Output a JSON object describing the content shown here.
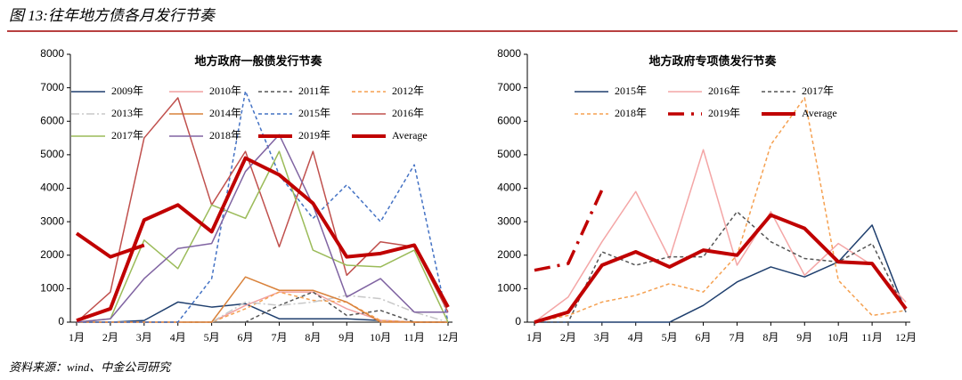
{
  "title": "图 13:往年地方债各月发行节奏",
  "source": "资料来源：wind、中金公司研究",
  "chart_data": [
    {
      "type": "line",
      "title": "地方政府一般债发行节奏",
      "categories": [
        "1月",
        "2月",
        "3月",
        "4月",
        "5月",
        "6月",
        "7月",
        "8月",
        "9月",
        "10月",
        "11月",
        "12月"
      ],
      "ylim": [
        0,
        8000
      ],
      "yticks": [
        0,
        1000,
        2000,
        3000,
        4000,
        5000,
        6000,
        7000,
        8000
      ],
      "series": [
        {
          "name": "2009年",
          "color": "#1f3f6e",
          "style": "solid",
          "values": [
            0,
            0,
            50,
            600,
            450,
            550,
            100,
            100,
            100,
            50,
            0,
            0
          ]
        },
        {
          "name": "2010年",
          "color": "#f0a0a0",
          "style": "solid",
          "values": [
            0,
            0,
            0,
            0,
            0,
            500,
            900,
            900,
            400,
            50,
            0,
            0
          ]
        },
        {
          "name": "2011年",
          "color": "#555555",
          "style": "dashed",
          "values": [
            0,
            0,
            0,
            0,
            0,
            0,
            500,
            900,
            200,
            350,
            0,
            0
          ]
        },
        {
          "name": "2012年",
          "color": "#f5a050",
          "style": "dashed",
          "values": [
            0,
            0,
            0,
            0,
            0,
            400,
            900,
            650,
            600,
            50,
            0,
            0
          ]
        },
        {
          "name": "2013年",
          "color": "#c8c8c8",
          "style": "dashdot",
          "values": [
            0,
            0,
            0,
            0,
            0,
            600,
            500,
            600,
            800,
            700,
            300,
            0
          ]
        },
        {
          "name": "2014年",
          "color": "#d9823b",
          "style": "solid",
          "values": [
            0,
            0,
            0,
            0,
            0,
            1350,
            950,
            950,
            600,
            0,
            0,
            0
          ]
        },
        {
          "name": "2015年",
          "color": "#4472c4",
          "style": "dashed",
          "values": [
            0,
            0,
            0,
            0,
            1300,
            6900,
            4400,
            3100,
            4100,
            3000,
            4700,
            0
          ]
        },
        {
          "name": "2016年",
          "color": "#c0504d",
          "style": "solid",
          "values": [
            0,
            900,
            5500,
            6700,
            3500,
            5100,
            2250,
            5100,
            1400,
            2400,
            2250,
            300
          ]
        },
        {
          "name": "2017年",
          "color": "#9bbb59",
          "style": "solid",
          "values": [
            0,
            100,
            2450,
            1600,
            3500,
            3100,
            5100,
            2150,
            1700,
            1650,
            2150,
            0
          ]
        },
        {
          "name": "2018年",
          "color": "#8064a2",
          "style": "solid",
          "values": [
            0,
            100,
            1300,
            2200,
            2350,
            4500,
            5600,
            3500,
            750,
            1300,
            300,
            300
          ]
        },
        {
          "name": "2019年",
          "color": "#c00000",
          "style": "thick",
          "values": [
            2650,
            1950,
            2300,
            null,
            null,
            null,
            null,
            null,
            null,
            null,
            null,
            null
          ]
        },
        {
          "name": "Average",
          "color": "#c00000",
          "style": "thick",
          "values": [
            50,
            400,
            3050,
            3500,
            2700,
            4900,
            4400,
            3550,
            1950,
            2050,
            2300,
            450
          ]
        }
      ]
    },
    {
      "type": "line",
      "title": "地方政府专项债发行节奏",
      "categories": [
        "1月",
        "2月",
        "3月",
        "4月",
        "5月",
        "6月",
        "7月",
        "8月",
        "9月",
        "10月",
        "11月",
        "12月"
      ],
      "ylim": [
        0,
        8000
      ],
      "yticks": [
        0,
        1000,
        2000,
        3000,
        4000,
        5000,
        6000,
        7000,
        8000
      ],
      "series": [
        {
          "name": "2015年",
          "color": "#1f3f6e",
          "style": "solid",
          "values": [
            0,
            0,
            0,
            0,
            0,
            500,
            1200,
            1650,
            1350,
            1800,
            2900,
            300
          ]
        },
        {
          "name": "2016年",
          "color": "#f4a6a6",
          "style": "solid",
          "values": [
            0,
            750,
            2400,
            3900,
            1900,
            5150,
            1700,
            3300,
            1400,
            2350,
            1700,
            600
          ]
        },
        {
          "name": "2017年",
          "color": "#555555",
          "style": "dashed",
          "values": [
            0,
            0,
            2100,
            1700,
            1950,
            1950,
            3300,
            2400,
            1900,
            1800,
            2350,
            300
          ]
        },
        {
          "name": "2018年",
          "color": "#f5a050",
          "style": "dashed",
          "values": [
            0,
            200,
            600,
            800,
            1150,
            900,
            2000,
            5300,
            6700,
            1250,
            200,
            350
          ]
        },
        {
          "name": "2019年",
          "color": "#c00000",
          "style": "thick-dashdot",
          "values": [
            1550,
            1750,
            3950,
            null,
            null,
            null,
            null,
            null,
            null,
            null,
            null,
            null
          ]
        },
        {
          "name": "Average",
          "color": "#c00000",
          "style": "thick",
          "values": [
            0,
            300,
            1700,
            2100,
            1650,
            2150,
            2000,
            3200,
            2800,
            1800,
            1750,
            400
          ]
        }
      ]
    }
  ]
}
